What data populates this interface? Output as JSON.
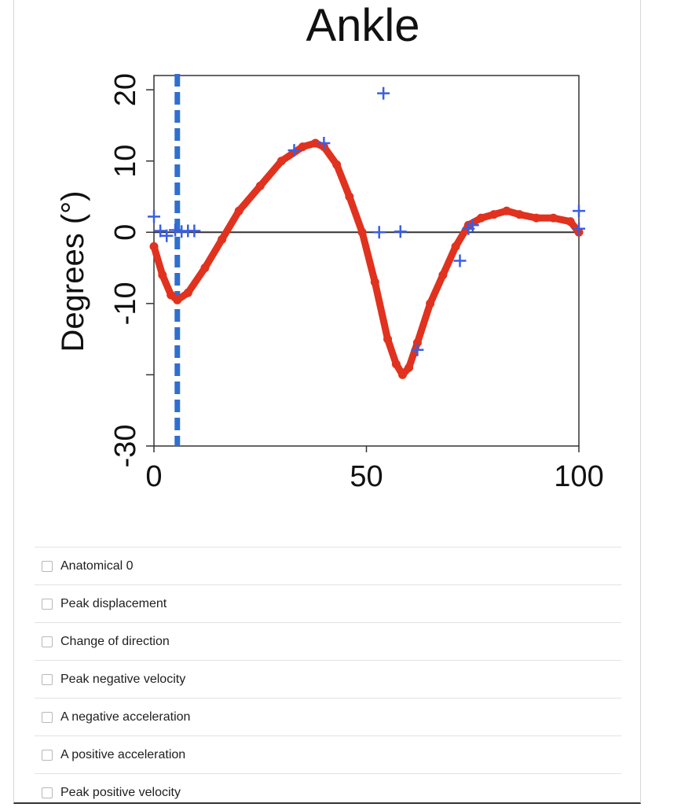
{
  "colors": {
    "curve": "#e0321e",
    "marker": "#3a5fe0",
    "vline": "#2f6fcf",
    "axis": "#333333"
  },
  "chart_data": {
    "type": "scatter",
    "title": "Ankle",
    "ylabel": "Degrees (°)",
    "xlabel": "",
    "xlim": [
      0,
      100
    ],
    "ylim": [
      -30,
      22
    ],
    "x_ticks": [
      "0",
      "50",
      "100"
    ],
    "y_ticks": [
      "20",
      "10",
      "0",
      "-10",
      "-30"
    ],
    "reference_vertical_line_x": 5.5,
    "zero_line": true,
    "series": [
      {
        "style": "thick red dotted curve",
        "x": [
          0,
          2,
          4,
          5.5,
          8,
          12,
          16,
          20,
          25,
          30,
          35,
          38,
          40,
          43,
          46,
          49,
          52,
          55,
          57,
          58.5,
          60,
          62,
          65,
          68,
          71,
          74,
          77,
          80,
          83,
          86,
          90,
          94,
          98,
          100
        ],
        "y": [
          -2,
          -6,
          -8.8,
          -9.5,
          -8.5,
          -5,
          -1,
          3,
          6.5,
          10,
          12,
          12.5,
          12,
          9.5,
          5,
          0,
          -7,
          -15,
          -18.5,
          -20,
          -19,
          -15.5,
          -10,
          -6,
          -2,
          1,
          2,
          2.5,
          3,
          2.5,
          2,
          2,
          1.5,
          0
        ]
      },
      {
        "style": "blue cross markers",
        "x": [
          0,
          1.5,
          3,
          5,
          6.5,
          8,
          9.5,
          33,
          40,
          54,
          53,
          58,
          62,
          72,
          74,
          75,
          100,
          100
        ],
        "y": [
          2.2,
          0.2,
          -0.5,
          0.3,
          0.1,
          0.2,
          0.2,
          11.5,
          12.5,
          19.5,
          0,
          0.1,
          -16.5,
          -4,
          0.5,
          1,
          3,
          0.5
        ]
      }
    ]
  },
  "options": [
    {
      "label": "Anatomical 0"
    },
    {
      "label": "Peak displacement"
    },
    {
      "label": "Change of direction"
    },
    {
      "label": "Peak negative velocity"
    },
    {
      "label": "A negative acceleration"
    },
    {
      "label": "A positive acceleration"
    },
    {
      "label": "Peak positive velocity"
    }
  ]
}
